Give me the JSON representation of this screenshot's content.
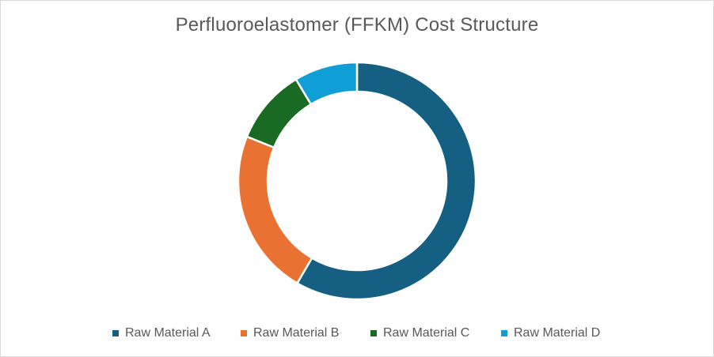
{
  "chart_data": {
    "type": "pie",
    "subtype": "doughnut",
    "title": "Perfluoroelastomer (FFKM) Cost Structure",
    "categories": [
      "Raw Material A",
      "Raw Material B",
      "Raw Material C",
      "Raw Material D"
    ],
    "values": [
      58.4,
      22.7,
      10.3,
      8.6
    ],
    "unit": "percent (estimated from segment angles)",
    "colors": [
      "#156082",
      "#E97132",
      "#196B24",
      "#0F9ED5"
    ],
    "start_angle_deg": 0,
    "direction": "clockwise",
    "data_labels": false,
    "legend_position": "bottom",
    "hole_ratio": 0.75
  },
  "title": "Perfluoroelastomer (FFKM) Cost Structure",
  "legend": {
    "items": [
      {
        "label": "Raw Material A",
        "color": "#156082"
      },
      {
        "label": "Raw Material B",
        "color": "#E97132"
      },
      {
        "label": "Raw Material C",
        "color": "#196B24"
      },
      {
        "label": "Raw Material D",
        "color": "#0F9ED5"
      }
    ]
  }
}
